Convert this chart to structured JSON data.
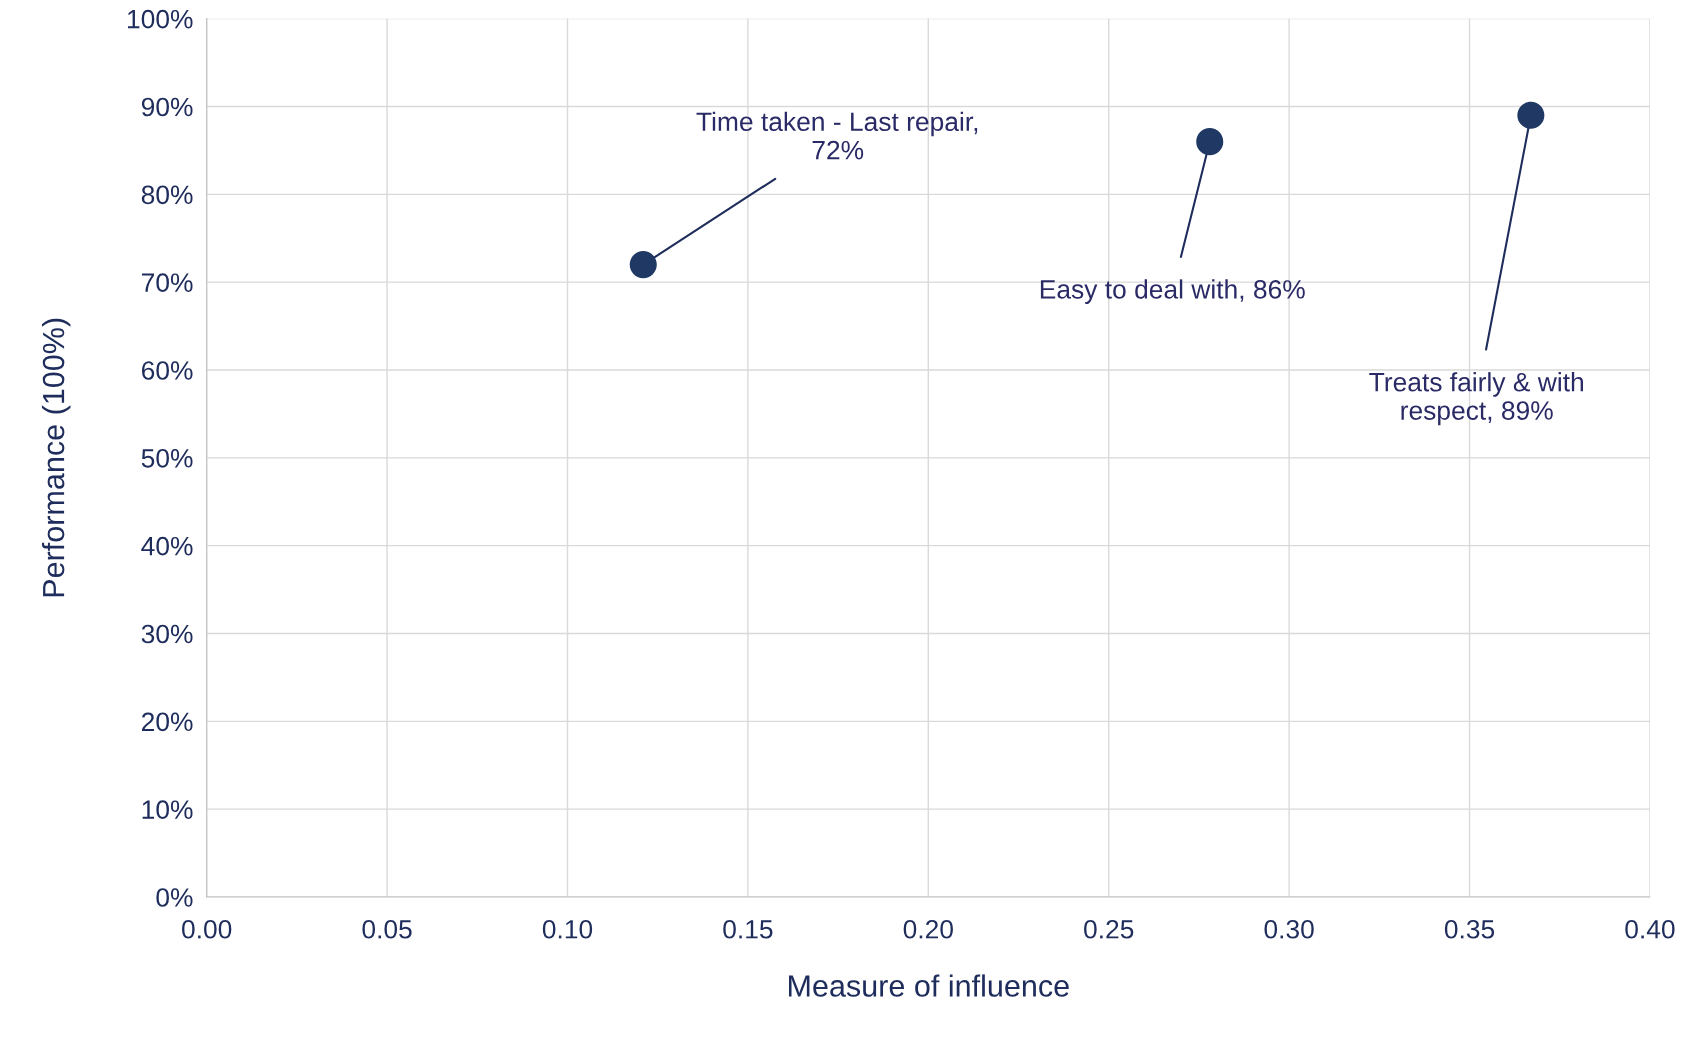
{
  "chart_data": {
    "type": "scatter",
    "xlabel": "Measure of influence",
    "ylabel": "Performance (100%)",
    "x": [
      0.121,
      0.278,
      0.367
    ],
    "series": [
      {
        "color": "#1f3864",
        "values": [
          72,
          86,
          89
        ]
      }
    ],
    "xlim": [
      0,
      0.4
    ],
    "xticks": [
      {
        "value": 0,
        "label": "0.00"
      },
      {
        "value": 0.05,
        "label": "0.05"
      },
      {
        "value": 0.1,
        "label": "0.10"
      },
      {
        "value": 0.15,
        "label": "0.15"
      },
      {
        "value": 0.2,
        "label": "0.20"
      },
      {
        "value": 0.25,
        "label": "0.25"
      },
      {
        "value": 0.3,
        "label": "0.30"
      },
      {
        "value": 0.35,
        "label": "0.35"
      },
      {
        "value": 0.4,
        "label": "0.40"
      }
    ],
    "ylim": [
      0,
      100
    ],
    "yticks": [
      {
        "value": 0,
        "label": "0%"
      },
      {
        "value": 10,
        "label": "10%"
      },
      {
        "value": 20,
        "label": "20%"
      },
      {
        "value": 30,
        "label": "30%"
      },
      {
        "value": 40,
        "label": "40%"
      },
      {
        "value": 50,
        "label": "50%"
      },
      {
        "value": 60,
        "label": "60%"
      },
      {
        "value": 70,
        "label": "70%"
      },
      {
        "value": 80,
        "label": "80%"
      },
      {
        "value": 90,
        "label": "90%"
      },
      {
        "value": 100,
        "label": "100%"
      }
    ],
    "grid": true,
    "marker": "circle",
    "annotations": [
      {
        "text": "Time taken - Last repair,\n72%",
        "x": 0.121,
        "y": 72
      },
      {
        "text": "Easy to deal with, 86%",
        "x": 0.278,
        "y": 86
      },
      {
        "text": "Treats fairly & with\nrespect, 89%",
        "x": 0.367,
        "y": 89
      }
    ]
  }
}
